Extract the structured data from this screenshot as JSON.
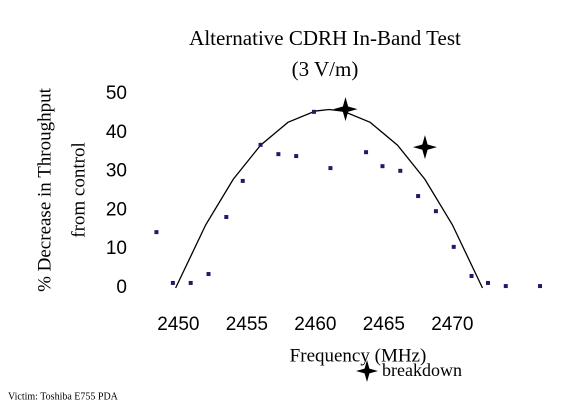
{
  "chart_data": {
    "type": "scatter",
    "title": "Alternative CDRH In-Band Test",
    "subtitle": "(3 V/m)",
    "x_label": "Frequency (MHz)",
    "y_label": [
      "% Decrease in Throughput",
      "from control"
    ],
    "xlim": [
      2447.2,
      2477.2
    ],
    "xticks": [
      2450,
      2455,
      2460,
      2465,
      2470
    ],
    "ylim": [
      0,
      50
    ],
    "yticks": [
      0,
      10,
      20,
      30,
      40,
      50
    ],
    "series": [
      {
        "color": "#1c1c6b",
        "x": [
          2448.4,
          2449.6,
          2450.9,
          2452.2,
          2453.5,
          2454.7,
          2456.0,
          2457.3,
          2458.6,
          2459.9,
          2461.1,
          2463.7,
          2464.9,
          2466.2,
          2467.5,
          2468.8,
          2470.1,
          2471.4,
          2472.6,
          2473.9,
          2476.4
        ],
        "values": [
          14.4,
          1.3,
          1.3,
          3.6,
          18.3,
          27.6,
          36.9,
          34.5,
          34,
          45.4,
          30.9,
          35,
          31.4,
          30.2,
          23.7,
          19.8,
          10.6,
          3.1,
          1.3,
          0.5,
          0.5
        ]
      },
      {
        "name": "breakdown",
        "color": "#000000",
        "marker": "star",
        "x": [
          2462.2,
          2468.0
        ],
        "values": [
          46.1,
          36.3
        ]
      }
    ],
    "curve": {
      "color": "#000000",
      "x": [
        2449.8,
        2452,
        2454,
        2456,
        2458,
        2460,
        2461,
        2462,
        2464,
        2466,
        2468,
        2470,
        2472.2
      ],
      "values": [
        0,
        16.3,
        28.0,
        36.8,
        42.7,
        45.6,
        46,
        45.6,
        42.7,
        36.8,
        28.0,
        16.3,
        0
      ]
    },
    "footnote": "Victim: Toshiba E755 PDA"
  }
}
